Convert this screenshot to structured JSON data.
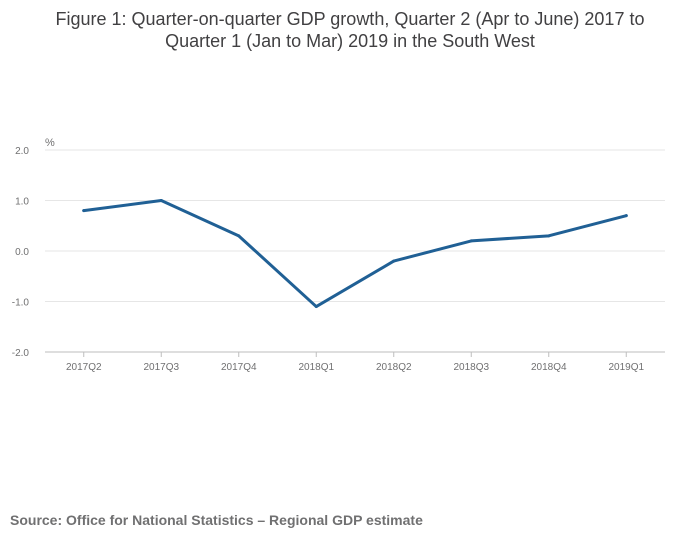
{
  "title_line1": "Figure 1: Quarter-on-quarter GDP growth, Quarter 2 (Apr to June) 2017 to",
  "title_line2": "Quarter 1 (Jan to Mar) 2019 in the South West",
  "source": "Source: Office for National Statistics – Regional GDP estimate",
  "colors": {
    "line": "#206095",
    "grid": "#e6e6e6",
    "axis": "#bebebe"
  },
  "chart_data": {
    "type": "line",
    "title": "Figure 1: Quarter-on-quarter GDP growth, Quarter 2 (Apr to June) 2017 to Quarter 1 (Jan to Mar) 2019 in the South West",
    "ylabel": "%",
    "xlabel": "",
    "categories": [
      "2017Q2",
      "2017Q3",
      "2017Q4",
      "2018Q1",
      "2018Q2",
      "2018Q3",
      "2018Q4",
      "2019Q1"
    ],
    "series": [
      {
        "name": "South West",
        "values": [
          0.8,
          1.0,
          0.3,
          -1.1,
          -0.2,
          0.2,
          0.3,
          0.7
        ]
      }
    ],
    "ylim": [
      -2.0,
      2.0
    ],
    "yticks": [
      "2.0",
      "1.0",
      "0.0",
      "-1.0",
      "-2.0"
    ],
    "grid": true,
    "legend": "none"
  }
}
